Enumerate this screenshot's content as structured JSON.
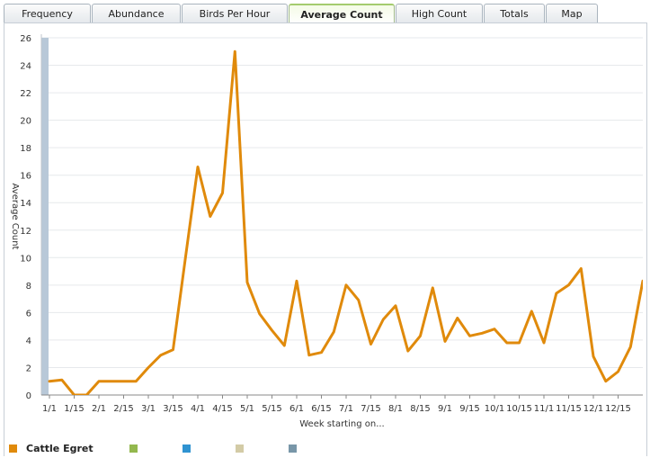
{
  "tabs": [
    {
      "label": "Frequency",
      "active": false
    },
    {
      "label": "Abundance",
      "active": false
    },
    {
      "label": "Birds Per Hour",
      "active": false
    },
    {
      "label": "Average Count",
      "active": true
    },
    {
      "label": "High Count",
      "active": false
    },
    {
      "label": "Totals",
      "active": false
    },
    {
      "label": "Map",
      "active": false
    }
  ],
  "legend": [
    {
      "label": "Cattle Egret",
      "color": "#e08a0b"
    },
    {
      "label": "",
      "color": "#93b84e"
    },
    {
      "label": "",
      "color": "#2f93d1"
    },
    {
      "label": "",
      "color": "#d3cba6"
    },
    {
      "label": "",
      "color": "#7896a8"
    }
  ],
  "chart_data": {
    "type": "line",
    "title": "",
    "xlabel": "Week starting on...",
    "ylabel": "Average Count",
    "ylim": [
      0,
      26
    ],
    "yticks": [
      0,
      2,
      4,
      6,
      8,
      10,
      12,
      14,
      16,
      18,
      20,
      22,
      24,
      26
    ],
    "xtick_labels": [
      "1/1",
      "1/15",
      "2/1",
      "2/15",
      "3/1",
      "3/15",
      "4/1",
      "4/15",
      "5/1",
      "5/15",
      "6/1",
      "6/15",
      "7/1",
      "7/15",
      "8/1",
      "8/15",
      "9/1",
      "9/15",
      "10/1",
      "10/15",
      "11/1",
      "11/15",
      "12/1",
      "12/15"
    ],
    "grid": true,
    "highlight_band": {
      "x_start": 0,
      "x_end": 0.5,
      "color": "#b8c8d8"
    },
    "series": [
      {
        "name": "Cattle Egret",
        "color": "#e08a0b",
        "x": [
          0,
          0.5,
          1,
          1.5,
          2,
          2.5,
          3,
          3.5,
          4,
          4.5,
          5,
          5.5,
          6,
          6.5,
          7,
          7.5,
          8,
          8.5,
          9,
          9.5,
          10,
          10.5,
          11,
          11.5,
          12,
          12.5,
          13,
          13.5,
          14,
          14.5,
          15,
          15.5,
          16,
          16.5,
          17,
          17.5,
          18,
          18.5,
          19,
          19.5,
          20,
          20.5,
          21,
          21.5,
          22,
          22.5,
          23,
          23.5,
          24
        ],
        "values": [
          1.0,
          1.1,
          0,
          0,
          1.0,
          1.0,
          1.0,
          1.0,
          2.0,
          2.9,
          3.3,
          10.0,
          16.6,
          13.0,
          14.7,
          25.0,
          8.2,
          5.9,
          4.7,
          3.6,
          8.3,
          2.9,
          3.1,
          4.6,
          8.0,
          6.9,
          3.7,
          5.5,
          6.5,
          3.2,
          4.3,
          7.8,
          3.9,
          5.6,
          4.3,
          4.5,
          4.8,
          3.8,
          3.8,
          6.1,
          3.8,
          7.4,
          8.0,
          9.2,
          2.8,
          1.0,
          1.7,
          3.5,
          8.3
        ]
      }
    ]
  }
}
